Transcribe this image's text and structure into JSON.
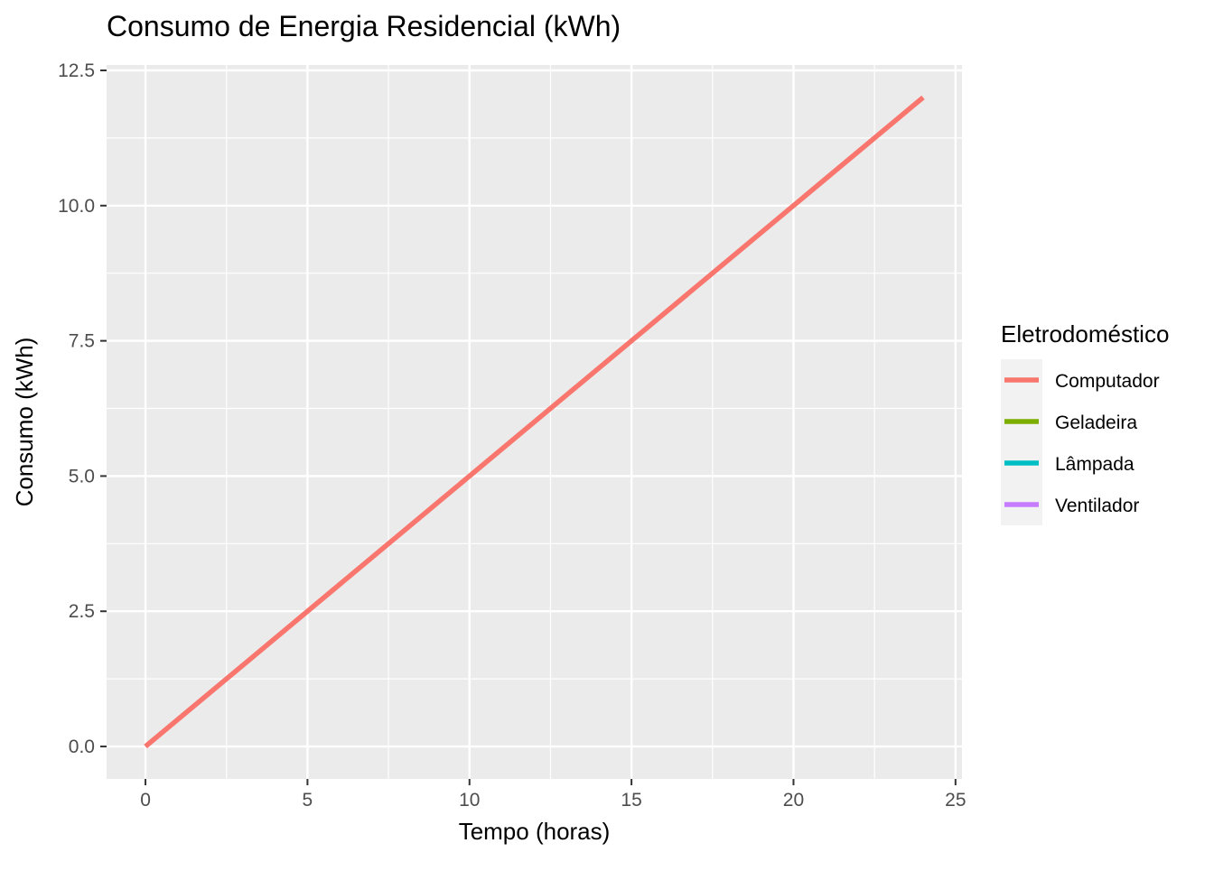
{
  "chart_data": {
    "type": "line",
    "title": "Consumo de Energia Residencial (kWh)",
    "xlabel": "Tempo (horas)",
    "ylabel": "Consumo (kWh)",
    "xlim": [
      -1.2,
      25.2
    ],
    "ylim": [
      -0.6,
      12.6
    ],
    "x_ticks": [
      0,
      5,
      10,
      15,
      20,
      25
    ],
    "x_tick_labels": [
      "0",
      "5",
      "10",
      "15",
      "20",
      "25"
    ],
    "y_ticks": [
      0,
      2.5,
      5,
      7.5,
      10,
      12.5
    ],
    "y_tick_labels": [
      "0.0",
      "2.5",
      "5.0",
      "7.5",
      "10.0",
      "12.5"
    ],
    "grid": true,
    "panel_background": "#EBEBEB",
    "legend": {
      "title": "Eletrodoméstico",
      "position": "right",
      "entries": [
        {
          "name": "Computador",
          "color": "#F8766D"
        },
        {
          "name": "Geladeira",
          "color": "#7CAE00"
        },
        {
          "name": "Lâmpada",
          "color": "#00BFC4"
        },
        {
          "name": "Ventilador",
          "color": "#C77CFF"
        }
      ]
    },
    "series": [
      {
        "name": "Computador",
        "color": "#F8766D",
        "x": [
          0,
          24
        ],
        "y": [
          0,
          12
        ]
      }
    ]
  }
}
